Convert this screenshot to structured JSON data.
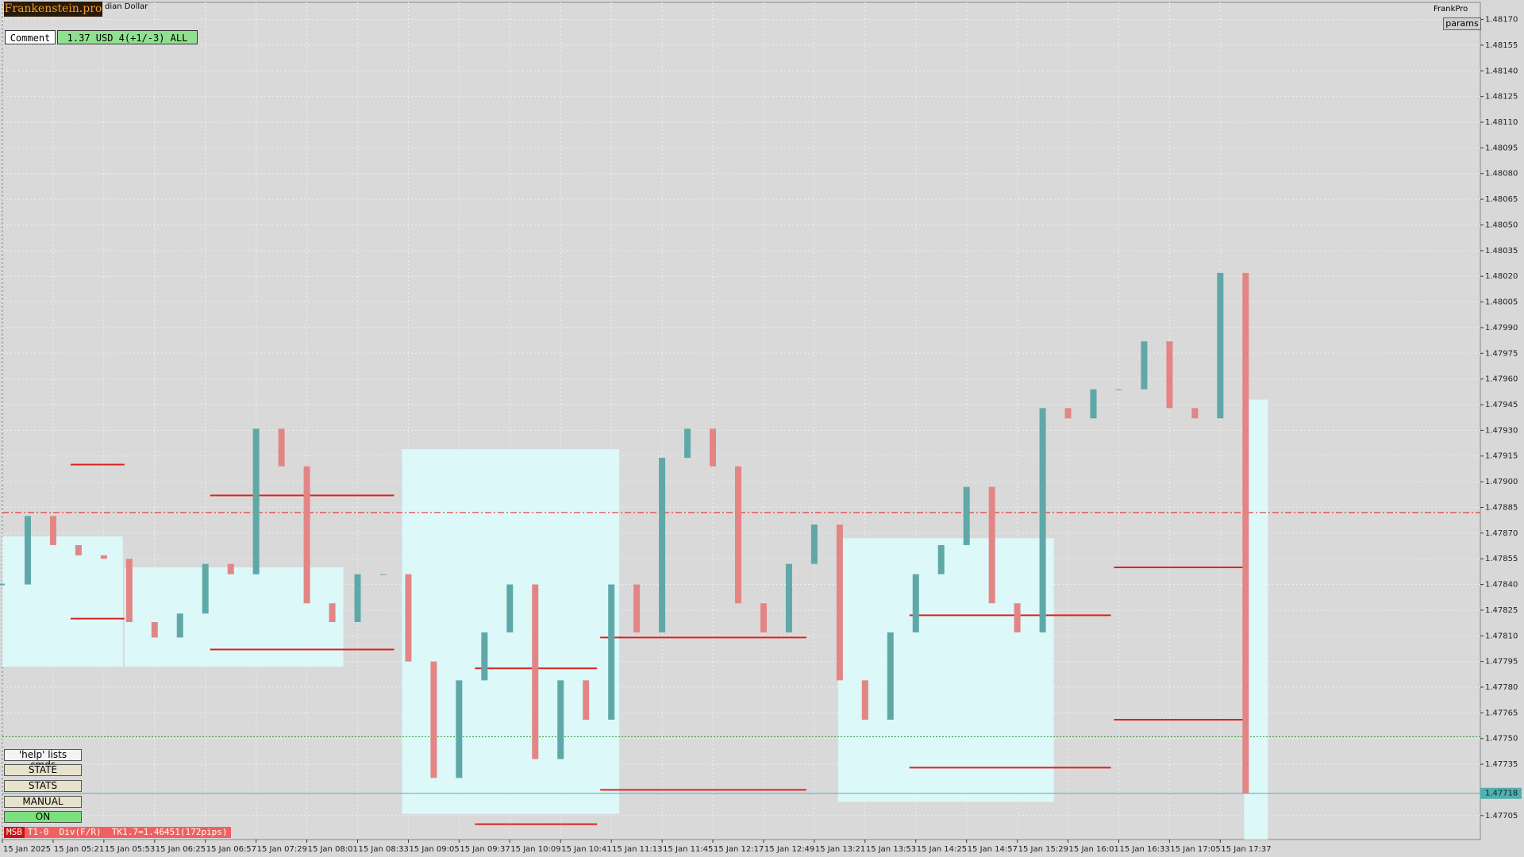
{
  "header": {
    "logo": "Frankenstein.pro",
    "symbol": "dian Dollar",
    "account": "FrankPro",
    "params": "params"
  },
  "comment": {
    "label": "Comment",
    "text": "1.37 USD 4(+1/-3) ALL"
  },
  "buttons": [
    "'help' lists cmds",
    "STATE",
    "STATS",
    "MANUAL",
    "ON"
  ],
  "status": {
    "tag": "MSB",
    "text": "T1-0  Div(F/R)  TK1.7=1.46451(172pips)"
  },
  "chart_data": {
    "type": "candlestick",
    "colors": {
      "up": "#5fa8a8",
      "down": "#e38585",
      "zone": "#dcfbfc",
      "level": "#e02020"
    },
    "grid": true,
    "x": [
      "04:49",
      "05:05",
      "05:21",
      "05:37",
      "05:53",
      "06:09",
      "06:25",
      "06:41",
      "06:57",
      "07:13",
      "07:29",
      "07:45",
      "08:01",
      "08:17",
      "08:33",
      "08:49",
      "09:05",
      "09:21",
      "09:37",
      "09:53",
      "10:09",
      "10:25",
      "10:41",
      "10:57",
      "11:13",
      "11:29",
      "11:45",
      "12:01",
      "12:17",
      "12:33",
      "12:49",
      "13:05",
      "13:21",
      "13:37",
      "13:53",
      "14:09",
      "14:25",
      "14:41",
      "14:57",
      "15:13",
      "15:29",
      "15:45",
      "16:01",
      "16:17",
      "16:33",
      "16:49",
      "17:05",
      "17:21",
      "17:37",
      "17:53"
    ],
    "values": [
      1.4784,
      1.4788,
      1.47863,
      1.47857,
      1.47855,
      1.47818,
      1.47809,
      1.47823,
      1.47852,
      1.47846,
      1.47931,
      1.47909,
      1.47829,
      1.47818,
      1.47846,
      1.47846,
      1.47795,
      1.47727,
      1.47784,
      1.47812,
      1.4784,
      1.47738,
      1.47784,
      1.47761,
      1.4784,
      1.47812,
      1.47914,
      1.47931,
      1.47909,
      1.47829,
      1.47812,
      1.47852,
      1.47875,
      1.47784,
      1.47761,
      1.47812,
      1.47846,
      1.47863,
      1.47897,
      1.47829,
      1.47812,
      1.47943,
      1.47937,
      1.47954,
      1.47954,
      1.47982,
      1.47943,
      1.47937,
      1.48022,
      1.47718
    ],
    "xlim": [
      "04:49",
      "20:21"
    ],
    "xticks": [
      {
        "value": "04:49",
        "label": "15 Jan 2025"
      },
      {
        "value": "05:21",
        "label": "15 Jan 05:21"
      },
      {
        "value": "05:53",
        "label": "15 Jan 05:53"
      },
      {
        "value": "06:25",
        "label": "15 Jan 06:25"
      },
      {
        "value": "06:57",
        "label": "15 Jan 06:57"
      },
      {
        "value": "07:29",
        "label": "15 Jan 07:29"
      },
      {
        "value": "08:01",
        "label": "15 Jan 08:01"
      },
      {
        "value": "08:33",
        "label": "15 Jan 08:33"
      },
      {
        "value": "09:05",
        "label": "15 Jan 09:05"
      },
      {
        "value": "09:37",
        "label": "15 Jan 09:37"
      },
      {
        "value": "10:09",
        "label": "15 Jan 10:09"
      },
      {
        "value": "10:41",
        "label": "15 Jan 10:41"
      },
      {
        "value": "11:13",
        "label": "15 Jan 11:13"
      },
      {
        "value": "11:45",
        "label": "15 Jan 11:45"
      },
      {
        "value": "12:17",
        "label": "15 Jan 12:17"
      },
      {
        "value": "12:49",
        "label": "15 Jan 12:49"
      },
      {
        "value": "13:21",
        "label": "15 Jan 13:21"
      },
      {
        "value": "13:53",
        "label": "15 Jan 13:53"
      },
      {
        "value": "14:25",
        "label": "15 Jan 14:25"
      },
      {
        "value": "14:57",
        "label": "15 Jan 14:57"
      },
      {
        "value": "15:29",
        "label": "15 Jan 15:29"
      },
      {
        "value": "16:01",
        "label": "15 Jan 16:01"
      },
      {
        "value": "16:33",
        "label": "15 Jan 16:33"
      },
      {
        "value": "17:05",
        "label": "15 Jan 17:05"
      },
      {
        "value": "17:37",
        "label": "15 Jan 17:37"
      }
    ],
    "ylim": [
      1.47691,
      1.4818
    ],
    "yticks": [
      {
        "value": 1.4817,
        "label": "1.48170"
      },
      {
        "value": 1.48155,
        "label": "1.48155"
      },
      {
        "value": 1.4814,
        "label": "1.48140"
      },
      {
        "value": 1.48125,
        "label": "1.48125"
      },
      {
        "value": 1.4811,
        "label": "1.48110"
      },
      {
        "value": 1.48095,
        "label": "1.48095"
      },
      {
        "value": 1.4808,
        "label": "1.48080"
      },
      {
        "value": 1.48065,
        "label": "1.48065"
      },
      {
        "value": 1.4805,
        "label": "1.48050"
      },
      {
        "value": 1.48035,
        "label": "1.48035"
      },
      {
        "value": 1.4802,
        "label": "1.48020"
      },
      {
        "value": 1.48005,
        "label": "1.48005"
      },
      {
        "value": 1.4799,
        "label": "1.47990"
      },
      {
        "value": 1.47975,
        "label": "1.47975"
      },
      {
        "value": 1.4796,
        "label": "1.47960"
      },
      {
        "value": 1.47945,
        "label": "1.47945"
      },
      {
        "value": 1.4793,
        "label": "1.47930"
      },
      {
        "value": 1.47915,
        "label": "1.47915"
      },
      {
        "value": 1.479,
        "label": "1.47900"
      },
      {
        "value": 1.47885,
        "label": "1.47885"
      },
      {
        "value": 1.4787,
        "label": "1.47870"
      },
      {
        "value": 1.47855,
        "label": "1.47855"
      },
      {
        "value": 1.4784,
        "label": "1.47840"
      },
      {
        "value": 1.47825,
        "label": "1.47825"
      },
      {
        "value": 1.4781,
        "label": "1.47810"
      },
      {
        "value": 1.47795,
        "label": "1.47795"
      },
      {
        "value": 1.4778,
        "label": "1.47780"
      },
      {
        "value": 1.47765,
        "label": "1.47765"
      },
      {
        "value": 1.4775,
        "label": "1.47750"
      },
      {
        "value": 1.47735,
        "label": "1.47735"
      },
      {
        "value": 1.47705,
        "label": "1.47705"
      }
    ],
    "zones": [
      {
        "x": [
          "04:49",
          "06:05"
        ],
        "y": [
          1.47792,
          1.47868
        ]
      },
      {
        "x": [
          "06:06",
          "08:24"
        ],
        "y": [
          1.47792,
          1.4785
        ]
      },
      {
        "x": [
          "09:01",
          "11:18"
        ],
        "y": [
          1.47706,
          1.47919
        ]
      },
      {
        "x": [
          "13:36",
          "15:52"
        ],
        "y": [
          1.47713,
          1.47867
        ]
      },
      {
        "x": [
          "17:52",
          "18:07"
        ],
        "y": [
          1.47691,
          1.47948
        ]
      }
    ],
    "levels": [
      {
        "x": [
          "05:32",
          "06:06"
        ],
        "y": 1.4791
      },
      {
        "x": [
          "05:32",
          "06:06"
        ],
        "y": 1.4782
      },
      {
        "x": [
          "07:00",
          "08:56"
        ],
        "y": 1.47892
      },
      {
        "x": [
          "07:00",
          "08:56"
        ],
        "y": 1.47802
      },
      {
        "x": [
          "09:47",
          "11:04"
        ],
        "y": 1.47791
      },
      {
        "x": [
          "09:47",
          "11:04"
        ],
        "y": 1.477
      },
      {
        "x": [
          "11:06",
          "13:16"
        ],
        "y": 1.47809
      },
      {
        "x": [
          "11:06",
          "13:16"
        ],
        "y": 1.4772
      },
      {
        "x": [
          "14:21",
          "16:28"
        ],
        "y": 1.47822
      },
      {
        "x": [
          "14:21",
          "16:28"
        ],
        "y": 1.47733
      },
      {
        "x": [
          "16:30",
          "17:52"
        ],
        "y": 1.4785
      },
      {
        "x": [
          "16:30",
          "17:52"
        ],
        "y": 1.47761
      }
    ],
    "reference_lines": [
      {
        "value": 1.47882,
        "color": "#e02020",
        "dash": "8 3 2 3"
      },
      {
        "value": 1.47751,
        "color": "#3a9a3a",
        "dash": "2 2"
      }
    ],
    "current_price": {
      "value": 1.47718,
      "label": "1.47718",
      "color": "#4fb0b0"
    }
  }
}
